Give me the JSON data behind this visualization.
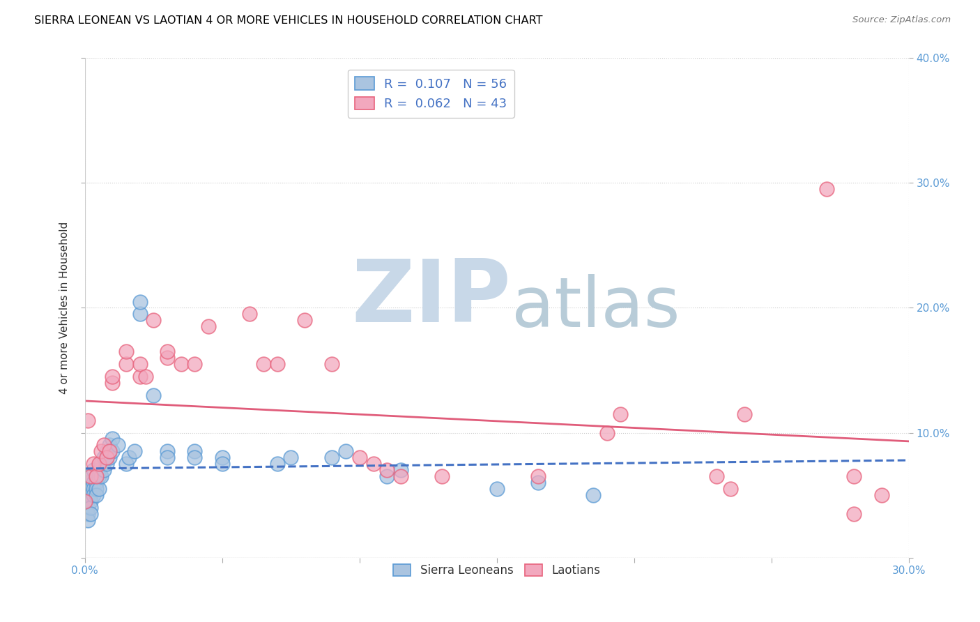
{
  "title": "SIERRA LEONEAN VS LAOTIAN 4 OR MORE VEHICLES IN HOUSEHOLD CORRELATION CHART",
  "source": "Source: ZipAtlas.com",
  "ylabel": "4 or more Vehicles in Household",
  "xlim": [
    0.0,
    0.3
  ],
  "ylim": [
    0.0,
    0.4
  ],
  "xticks": [
    0.0,
    0.05,
    0.1,
    0.15,
    0.2,
    0.25,
    0.3
  ],
  "xtick_labels": [
    "0.0%",
    "",
    "",
    "",
    "",
    "",
    "30.0%"
  ],
  "yticks": [
    0.0,
    0.1,
    0.2,
    0.3,
    0.4
  ],
  "ytick_labels_left": [
    "",
    "",
    "",
    "",
    ""
  ],
  "ytick_labels_right": [
    "",
    "10.0%",
    "20.0%",
    "30.0%",
    "40.0%"
  ],
  "legend_blue_R": "0.107",
  "legend_blue_N": "56",
  "legend_pink_R": "0.062",
  "legend_pink_N": "43",
  "blue_color": "#aac4e0",
  "pink_color": "#f2a8be",
  "blue_edge_color": "#5b9bd5",
  "pink_edge_color": "#e8637d",
  "blue_line_color": "#4472c4",
  "pink_line_color": "#e05c7a",
  "blue_scatter": [
    [
      0.0,
      0.055
    ],
    [
      0.0,
      0.045
    ],
    [
      0.001,
      0.06
    ],
    [
      0.001,
      0.05
    ],
    [
      0.001,
      0.04
    ],
    [
      0.001,
      0.035
    ],
    [
      0.001,
      0.03
    ],
    [
      0.002,
      0.065
    ],
    [
      0.002,
      0.055
    ],
    [
      0.002,
      0.05
    ],
    [
      0.002,
      0.045
    ],
    [
      0.002,
      0.04
    ],
    [
      0.002,
      0.035
    ],
    [
      0.003,
      0.07
    ],
    [
      0.003,
      0.06
    ],
    [
      0.003,
      0.055
    ],
    [
      0.003,
      0.05
    ],
    [
      0.004,
      0.065
    ],
    [
      0.004,
      0.06
    ],
    [
      0.004,
      0.055
    ],
    [
      0.004,
      0.05
    ],
    [
      0.005,
      0.07
    ],
    [
      0.005,
      0.065
    ],
    [
      0.005,
      0.055
    ],
    [
      0.006,
      0.075
    ],
    [
      0.006,
      0.065
    ],
    [
      0.007,
      0.08
    ],
    [
      0.007,
      0.07
    ],
    [
      0.008,
      0.085
    ],
    [
      0.008,
      0.075
    ],
    [
      0.009,
      0.09
    ],
    [
      0.009,
      0.08
    ],
    [
      0.01,
      0.095
    ],
    [
      0.01,
      0.085
    ],
    [
      0.012,
      0.09
    ],
    [
      0.015,
      0.075
    ],
    [
      0.016,
      0.08
    ],
    [
      0.018,
      0.085
    ],
    [
      0.02,
      0.195
    ],
    [
      0.02,
      0.205
    ],
    [
      0.025,
      0.13
    ],
    [
      0.03,
      0.085
    ],
    [
      0.03,
      0.08
    ],
    [
      0.04,
      0.085
    ],
    [
      0.04,
      0.08
    ],
    [
      0.05,
      0.08
    ],
    [
      0.05,
      0.075
    ],
    [
      0.07,
      0.075
    ],
    [
      0.075,
      0.08
    ],
    [
      0.09,
      0.08
    ],
    [
      0.095,
      0.085
    ],
    [
      0.11,
      0.065
    ],
    [
      0.115,
      0.07
    ],
    [
      0.15,
      0.055
    ],
    [
      0.165,
      0.06
    ],
    [
      0.185,
      0.05
    ]
  ],
  "pink_scatter": [
    [
      0.0,
      0.045
    ],
    [
      0.001,
      0.11
    ],
    [
      0.002,
      0.065
    ],
    [
      0.003,
      0.075
    ],
    [
      0.004,
      0.065
    ],
    [
      0.005,
      0.075
    ],
    [
      0.006,
      0.085
    ],
    [
      0.007,
      0.09
    ],
    [
      0.008,
      0.08
    ],
    [
      0.009,
      0.085
    ],
    [
      0.01,
      0.14
    ],
    [
      0.01,
      0.145
    ],
    [
      0.015,
      0.155
    ],
    [
      0.015,
      0.165
    ],
    [
      0.02,
      0.145
    ],
    [
      0.02,
      0.155
    ],
    [
      0.022,
      0.145
    ],
    [
      0.025,
      0.19
    ],
    [
      0.03,
      0.16
    ],
    [
      0.03,
      0.165
    ],
    [
      0.035,
      0.155
    ],
    [
      0.04,
      0.155
    ],
    [
      0.045,
      0.185
    ],
    [
      0.06,
      0.195
    ],
    [
      0.065,
      0.155
    ],
    [
      0.07,
      0.155
    ],
    [
      0.08,
      0.19
    ],
    [
      0.09,
      0.155
    ],
    [
      0.1,
      0.08
    ],
    [
      0.105,
      0.075
    ],
    [
      0.11,
      0.07
    ],
    [
      0.115,
      0.065
    ],
    [
      0.13,
      0.065
    ],
    [
      0.165,
      0.065
    ],
    [
      0.19,
      0.1
    ],
    [
      0.195,
      0.115
    ],
    [
      0.23,
      0.065
    ],
    [
      0.235,
      0.055
    ],
    [
      0.24,
      0.115
    ],
    [
      0.27,
      0.295
    ],
    [
      0.28,
      0.065
    ],
    [
      0.28,
      0.035
    ],
    [
      0.29,
      0.05
    ]
  ],
  "watermark_zip": "ZIP",
  "watermark_atlas": "atlas",
  "watermark_color_zip": "#c8d8e8",
  "watermark_color_atlas": "#b8ccd8",
  "background_color": "#ffffff",
  "grid_color": "#cccccc",
  "grid_linestyle": "--"
}
